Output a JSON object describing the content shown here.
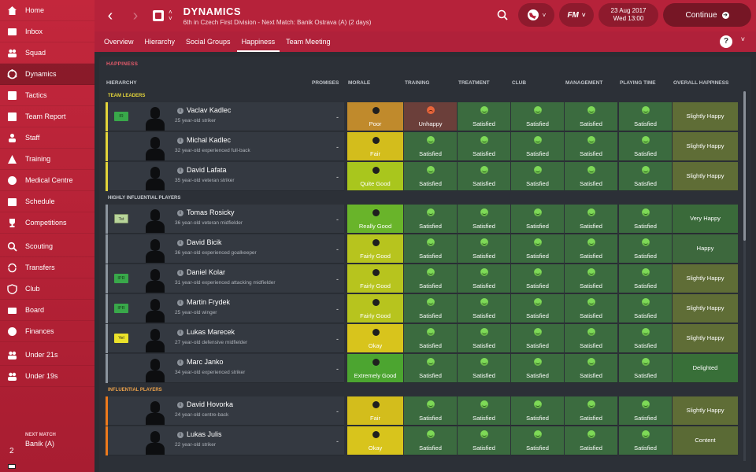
{
  "sidebar": {
    "items": [
      {
        "label": "Home",
        "icon": "home-icon"
      },
      {
        "label": "Inbox",
        "icon": "inbox-icon"
      },
      {
        "label": "Squad",
        "icon": "squad-icon"
      },
      {
        "label": "Dynamics",
        "icon": "dynamics-icon",
        "active": true
      },
      {
        "label": "Tactics",
        "icon": "tactics-icon"
      },
      {
        "label": "Team Report",
        "icon": "team-report-icon"
      },
      {
        "label": "Staff",
        "icon": "staff-icon"
      },
      {
        "label": "Training",
        "icon": "training-icon"
      },
      {
        "label": "Medical Centre",
        "icon": "medical-icon"
      },
      {
        "label": "Schedule",
        "icon": "schedule-icon"
      },
      {
        "label": "Competitions",
        "icon": "trophy-icon"
      },
      {
        "label": "Scouting",
        "icon": "scouting-icon"
      },
      {
        "label": "Transfers",
        "icon": "transfers-icon"
      },
      {
        "label": "Club",
        "icon": "club-icon"
      },
      {
        "label": "Board",
        "icon": "board-icon"
      },
      {
        "label": "Finances",
        "icon": "finances-icon"
      },
      {
        "label": "Under 21s",
        "icon": "under21-icon"
      },
      {
        "label": "Under 19s",
        "icon": "under19-icon"
      }
    ],
    "next_match": {
      "label": "NEXT MATCH",
      "number": "2",
      "team": "Banik (A)"
    }
  },
  "header": {
    "title": "DYNAMICS",
    "subtitle": "6th in Czech First Division - Next Match: Banik Ostrava (A) (2 days)",
    "date": "23 Aug 2017",
    "time": "Wed 13:00",
    "fm_label": "FM",
    "continue_label": "Continue"
  },
  "tabs": [
    {
      "label": "Overview"
    },
    {
      "label": "Hierarchy"
    },
    {
      "label": "Social Groups"
    },
    {
      "label": "Happiness",
      "active": true
    },
    {
      "label": "Team Meeting"
    }
  ],
  "panel": {
    "title": "HAPPINESS",
    "columns": {
      "hierarchy": "HIERARCHY",
      "promises": "PROMISES",
      "morale": "MORALE",
      "training": "TRAINING",
      "treatment": "TREATMENT",
      "club": "CLUB",
      "management": "MANAGEMENT",
      "playing_time": "PLAYING TIME",
      "overall": "OVERALL HAPPINESS"
    },
    "groups": [
      {
        "label": "TEAM LEADERS",
        "color": "yellow",
        "players": [
          {
            "status": "IR",
            "name": "Vaclav Kadlec",
            "desc": "25 year-old striker",
            "promise": "-",
            "morale": "Poor",
            "training": "Unhappy",
            "treatment": "Satisfied",
            "club": "Satisfied",
            "management": "Satisfied",
            "playing_time": "Satisfied",
            "overall": "Slightly Happy"
          },
          {
            "status": "",
            "name": "Michal Kadlec",
            "desc": "32 year-old experienced full-back",
            "promise": "-",
            "morale": "Fair",
            "training": "Satisfied",
            "treatment": "Satisfied",
            "club": "Satisfied",
            "management": "Satisfied",
            "playing_time": "Satisfied",
            "overall": "Slightly Happy"
          },
          {
            "status": "",
            "name": "David Lafata",
            "desc": "35 year-old veteran striker",
            "promise": "-",
            "morale": "Quite Good",
            "training": "Satisfied",
            "treatment": "Satisfied",
            "club": "Satisfied",
            "management": "Satisfied",
            "playing_time": "Satisfied",
            "overall": "Slightly Happy"
          }
        ]
      },
      {
        "label": "HIGHLY INFLUENTIAL PLAYERS",
        "color": "grey",
        "players": [
          {
            "status": "Tst",
            "name": "Tomas Rosicky",
            "desc": "36 year-old veteran midfielder",
            "promise": "-",
            "morale": "Really Good",
            "training": "Satisfied",
            "treatment": "Satisfied",
            "club": "Satisfied",
            "management": "Satisfied",
            "playing_time": "Satisfied",
            "overall": "Very Happy"
          },
          {
            "status": "",
            "name": "David Bicik",
            "desc": "36 year-old experienced goalkeeper",
            "promise": "-",
            "morale": "Fairly Good",
            "training": "Satisfied",
            "treatment": "Satisfied",
            "club": "Satisfied",
            "management": "Satisfied",
            "playing_time": "Satisfied",
            "overall": "Happy"
          },
          {
            "status": "IPR",
            "name": "Daniel Kolar",
            "desc": "31 year-old experienced attacking midfielder",
            "promise": "-",
            "morale": "Fairly Good",
            "training": "Satisfied",
            "treatment": "Satisfied",
            "club": "Satisfied",
            "management": "Satisfied",
            "playing_time": "Satisfied",
            "overall": "Slightly Happy"
          },
          {
            "status": "IPR",
            "name": "Martin Frydek",
            "desc": "25 year-old winger",
            "promise": "-",
            "morale": "Fairly Good",
            "training": "Satisfied",
            "treatment": "Satisfied",
            "club": "Satisfied",
            "management": "Satisfied",
            "playing_time": "Satisfied",
            "overall": "Slightly Happy"
          },
          {
            "status": "Yel",
            "name": "Lukas Marecek",
            "desc": "27 year-old defensive midfielder",
            "promise": "-",
            "morale": "Okay",
            "training": "Satisfied",
            "treatment": "Satisfied",
            "club": "Satisfied",
            "management": "Satisfied",
            "playing_time": "Satisfied",
            "overall": "Slightly Happy"
          },
          {
            "status": "",
            "name": "Marc Janko",
            "desc": "34 year-old experienced striker",
            "promise": "-",
            "morale": "Extremely Good",
            "training": "Satisfied",
            "treatment": "Satisfied",
            "club": "Satisfied",
            "management": "Satisfied",
            "playing_time": "Satisfied",
            "overall": "Delighted"
          }
        ]
      },
      {
        "label": "INFLUENTIAL PLAYERS",
        "color": "orange",
        "players": [
          {
            "status": "",
            "name": "David Hovorka",
            "desc": "24 year-old centre-back",
            "promise": "-",
            "morale": "Fair",
            "training": "Satisfied",
            "treatment": "Satisfied",
            "club": "Satisfied",
            "management": "Satisfied",
            "playing_time": "Satisfied",
            "overall": "Slightly Happy"
          },
          {
            "status": "",
            "name": "Lukas Julis",
            "desc": "22 year-old striker",
            "promise": "-",
            "morale": "Okay",
            "training": "Satisfied",
            "treatment": "Satisfied",
            "club": "Satisfied",
            "management": "Satisfied",
            "playing_time": "Satisfied",
            "overall": "Content"
          }
        ]
      }
    ]
  }
}
